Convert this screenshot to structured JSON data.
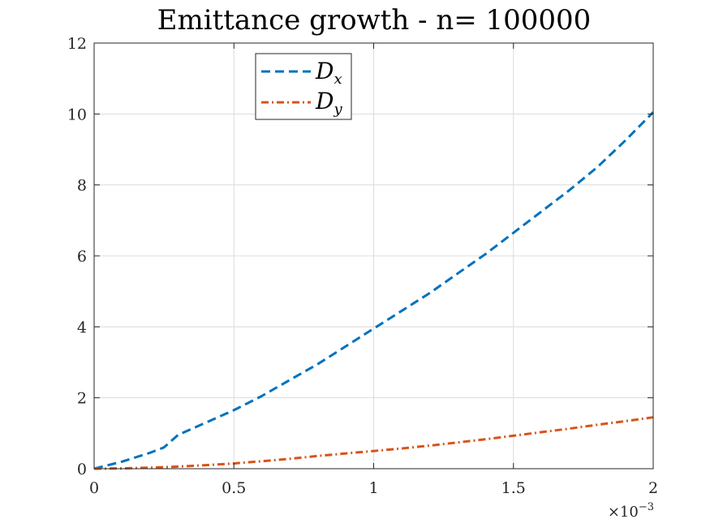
{
  "chart_data": {
    "type": "line",
    "title": "Emittance growth - n= 100000",
    "xlabel": "",
    "ylabel": "",
    "xlim": [
      0,
      0.002
    ],
    "ylim": [
      0,
      12
    ],
    "x_ticks": [
      0,
      0.0005,
      0.001,
      0.0015,
      0.002
    ],
    "x_tick_labels": [
      "0",
      "0.5",
      "1",
      "1.5",
      "2"
    ],
    "x_exponent_base": "×10",
    "x_exponent_power": "−3",
    "y_ticks": [
      0,
      2,
      4,
      6,
      8,
      10,
      12
    ],
    "y_tick_labels": [
      "0",
      "2",
      "4",
      "6",
      "8",
      "10",
      "12"
    ],
    "grid": true,
    "legend_position": "top-center",
    "series": [
      {
        "name": "D",
        "name_subscript": "x",
        "color": "#0072BD",
        "line_style": "dashed",
        "x": [
          0,
          0.0001,
          0.0002,
          0.00025,
          0.0003,
          0.0004,
          0.0005,
          0.0006,
          0.0007,
          0.0008,
          0.0009,
          0.001,
          0.0011,
          0.0012,
          0.0013,
          0.0014,
          0.0015,
          0.0016,
          0.0017,
          0.0018,
          0.0019,
          0.002
        ],
        "y": [
          0,
          0.2,
          0.45,
          0.6,
          0.95,
          1.3,
          1.65,
          2.05,
          2.5,
          2.95,
          3.45,
          3.95,
          4.45,
          4.95,
          5.5,
          6.05,
          6.65,
          7.25,
          7.85,
          8.5,
          9.25,
          10.05
        ]
      },
      {
        "name": "D",
        "name_subscript": "y",
        "color": "#D95319",
        "line_style": "dashdot",
        "x": [
          0,
          0.0001,
          0.0002,
          0.0003,
          0.0004,
          0.0005,
          0.0006,
          0.0007,
          0.0008,
          0.0009,
          0.001,
          0.0011,
          0.0012,
          0.0013,
          0.0014,
          0.0015,
          0.0016,
          0.0017,
          0.0018,
          0.0019,
          0.002
        ],
        "y": [
          0,
          0.01,
          0.03,
          0.06,
          0.1,
          0.15,
          0.21,
          0.28,
          0.36,
          0.43,
          0.5,
          0.57,
          0.65,
          0.74,
          0.83,
          0.93,
          1.03,
          1.13,
          1.24,
          1.34,
          1.45
        ]
      }
    ]
  }
}
